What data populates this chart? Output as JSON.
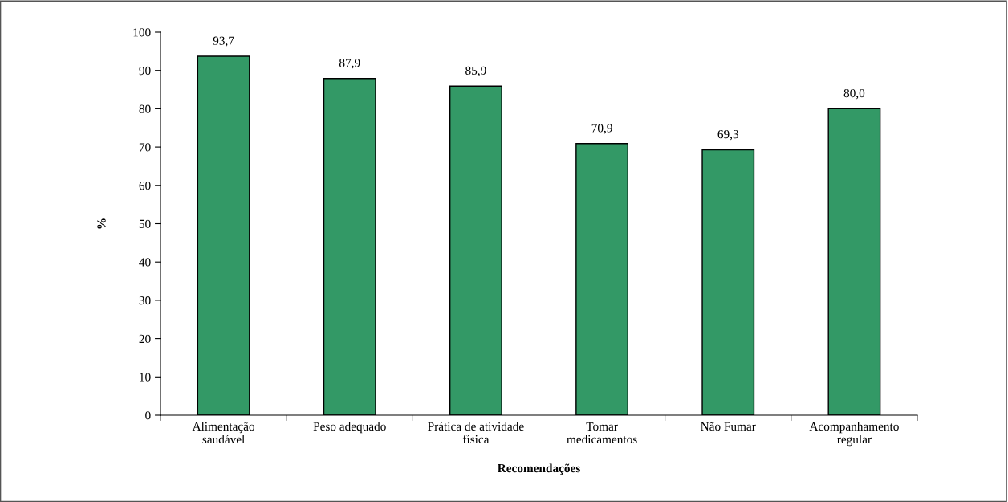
{
  "chart_data": {
    "type": "bar",
    "xlabel": "Recomendações",
    "ylabel": "%",
    "categories": [
      "Alimentação\nsaudável",
      "Peso adequado",
      "Prática de atividade\nfísica",
      "Tomar\nmedicamentos",
      "Não Fumar",
      "Acompanhamento\nregular"
    ],
    "values": [
      93.7,
      87.9,
      85.9,
      70.9,
      69.3,
      80.0
    ],
    "value_labels": [
      "93,7",
      "87,9",
      "85,9",
      "70,9",
      "69,3",
      "80,0"
    ],
    "color": "#339966",
    "ylim": [
      0,
      100
    ],
    "yticks": [
      0,
      10,
      20,
      30,
      40,
      50,
      60,
      70,
      80,
      90,
      100
    ],
    "grid": false,
    "legend": false
  }
}
